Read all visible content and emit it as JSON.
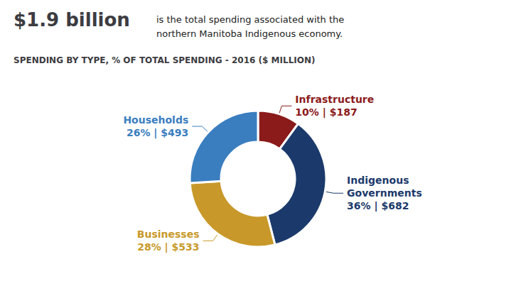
{
  "chart_data": {
    "type": "pie",
    "title": "$1.9 billion",
    "annotations": [
      "is the total spending associated with the\nnorthern Manitoba Indigenous economy."
    ],
    "subtitle": "SPENDING BY TYPE, % OF TOTAL SPENDING - 2016 ($ MILLION)",
    "categories": [
      "Infrastructure",
      "Indigenous\nGovernments",
      "Businesses",
      "Households"
    ],
    "values": [
      10,
      36,
      28,
      26
    ],
    "value_labels": [
      "10% | $187",
      "36% | $682",
      "28% | $533",
      "26% | $493"
    ],
    "colors": [
      "#8B1A1A",
      "#1B3A6B",
      "#C8992A",
      "#3A7EBF"
    ],
    "data_labels": true
  }
}
